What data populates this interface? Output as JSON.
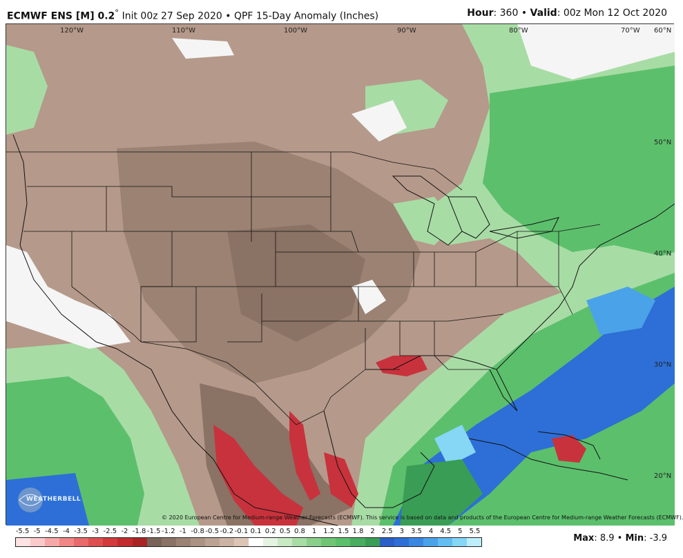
{
  "header": {
    "model": "ECMWF ENS [M] 0.2",
    "degree": "°",
    "init": "Init 00z 27 Sep 2020",
    "bullet": "•",
    "product": "QPF 15-Day Anomaly (Inches)",
    "hour_label": "Hour",
    "hour_value": ": 360",
    "valid_label": "Valid",
    "valid_value": ": 00z Mon 12 Oct 2020"
  },
  "map": {
    "longitude_labels": [
      "120°W",
      "110°W",
      "100°W",
      "90°W",
      "80°W",
      "70°W",
      "60°N"
    ],
    "latitude_labels": [
      "50°N",
      "40°N",
      "30°N",
      "20°N"
    ],
    "colors": {
      "dry_strong": "#c8323c",
      "dry_mid": "#8f7565",
      "dry_light": "#b5998a",
      "dry_faint": "#d3b9a8",
      "neutral": "#f5f5f5",
      "wet_light": "#a8dca5",
      "wet_mid": "#5cbf6c",
      "wet_strong": "#3a9d55",
      "very_wet": "#2d6fd6",
      "very_wet_light": "#4aa3e8"
    }
  },
  "logo": {
    "text": "WEATHERBELL"
  },
  "copyright": "© 2020 European Centre for Medium-range Weather Forecasts (ECMWF). This service is based on data and products of the European Centre for Medium-range Weather Forecasts (ECMWF).",
  "legend": {
    "labels": [
      "-5.5",
      "-5",
      "-4.5",
      "-4",
      "-3.5",
      "-3",
      "-2.5",
      "-2",
      "-1.8",
      "-1.5",
      "-1.2",
      "-1",
      "-0.8",
      "-0.5",
      "-0.2",
      "-0.1",
      "0.1",
      "0.2",
      "0.5",
      "0.8",
      "1",
      "1.2",
      "1.5",
      "1.8",
      "2",
      "2.5",
      "3",
      "3.5",
      "4",
      "4.5",
      "5",
      "5.5"
    ],
    "colors": [
      "#fde3e3",
      "#fbc9c9",
      "#f6a7a7",
      "#f08686",
      "#e86a6a",
      "#de4f4f",
      "#d23b3b",
      "#c22c2c",
      "#a92525",
      "#7a6458",
      "#8a7264",
      "#9b8273",
      "#ab9282",
      "#bca293",
      "#ccb3a3",
      "#ddc5b6",
      "#ffffff",
      "#e4f4e1",
      "#c7eac3",
      "#a8dca5",
      "#8bd08a",
      "#70c575",
      "#5cbf6c",
      "#48ad5f",
      "#3a9d55",
      "#2a5fc8",
      "#2d6fd6",
      "#3a86e0",
      "#4aa3e8",
      "#62bdf0",
      "#86d6f6",
      "#bdeefb"
    ]
  },
  "stats": {
    "max_label": "Max",
    "max_value": ": 8.9",
    "sep": "•",
    "min_label": "Min",
    "min_value": ": -3.9"
  }
}
